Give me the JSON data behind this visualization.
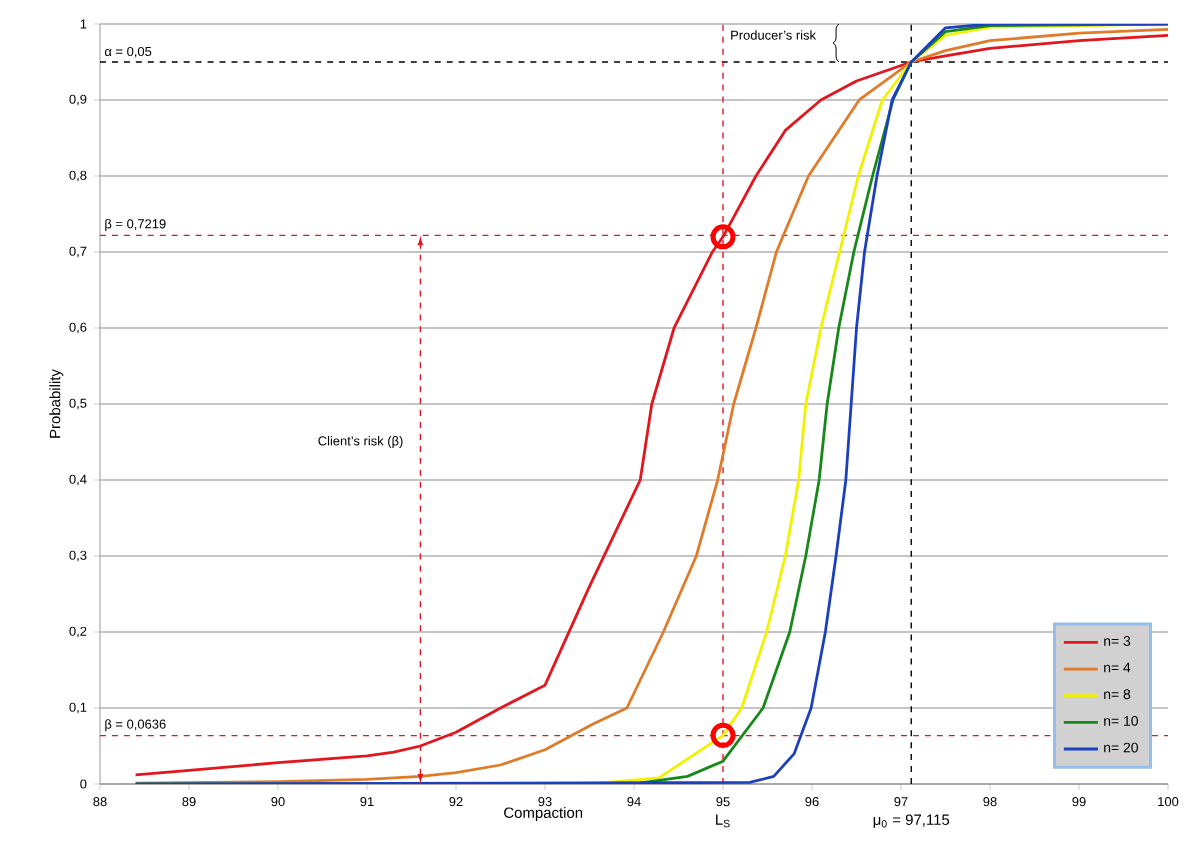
{
  "chart_data": {
    "type": "line",
    "xlabel": "Compaction",
    "ylabel": "Probability",
    "xlim": [
      88,
      100
    ],
    "xticks": [
      88,
      89,
      90,
      91,
      92,
      93,
      94,
      95,
      96,
      97,
      98,
      99,
      100
    ],
    "ylim": [
      0,
      1
    ],
    "yticks": [
      0,
      {
        "value": 0.1,
        "label": "0,1"
      },
      {
        "value": 0.2,
        "label": "0,2"
      },
      {
        "value": 0.3,
        "label": "0,3"
      },
      {
        "value": 0.4,
        "label": "0,4"
      },
      {
        "value": 0.5,
        "label": "0,5"
      },
      {
        "value": 0.6,
        "label": "0,6"
      },
      {
        "value": 0.7,
        "label": "0,7"
      },
      {
        "value": 0.8,
        "label": "0,8"
      },
      {
        "value": 0.9,
        "label": "0,9"
      },
      1
    ],
    "grid": "y",
    "legend": "bottom right",
    "marker": "none",
    "line_style": "solid",
    "series": [
      {
        "name": "n= 3",
        "color": "#e3161e",
        "x": [
          88.4,
          89,
          90,
          91,
          91.3,
          91.6,
          92,
          92.5,
          93,
          93.5,
          94.07,
          94.2,
          94.45,
          94.88,
          95,
          95.37,
          95.7,
          96.1,
          96.5,
          97.115,
          97.5,
          98,
          99,
          100
        ],
        "values": [
          0.012,
          0.018,
          0.028,
          0.037,
          0.042,
          0.05,
          0.068,
          0.1,
          0.13,
          0.26,
          0.4,
          0.5,
          0.6,
          0.7,
          0.72,
          0.8,
          0.86,
          0.9,
          0.925,
          0.95,
          0.958,
          0.968,
          0.978,
          0.985
        ]
      },
      {
        "name": "n= 4",
        "color": "#e07b2a",
        "x": [
          88.4,
          90,
          91,
          91.6,
          92,
          92.5,
          93,
          93.54,
          93.92,
          94.33,
          94.7,
          94.94,
          95.12,
          95.37,
          95.6,
          95.96,
          96.53,
          97.115,
          97.5,
          98,
          99,
          100
        ],
        "values": [
          0.001,
          0.003,
          0.006,
          0.01,
          0.015,
          0.025,
          0.045,
          0.079,
          0.1,
          0.2,
          0.3,
          0.4,
          0.5,
          0.6,
          0.7,
          0.8,
          0.9,
          0.95,
          0.965,
          0.978,
          0.988,
          0.993
        ]
      },
      {
        "name": "n= 8",
        "color": "#f2f200",
        "x": [
          88.4,
          93.5,
          94.28,
          95,
          95.21,
          95.49,
          95.7,
          95.85,
          95.93,
          96.1,
          96.31,
          96.52,
          96.79,
          97.115,
          97.5,
          98,
          100
        ],
        "values": [
          0,
          0,
          0.008,
          0.064,
          0.1,
          0.2,
          0.3,
          0.4,
          0.5,
          0.6,
          0.7,
          0.8,
          0.9,
          0.95,
          0.985,
          0.996,
          1
        ]
      },
      {
        "name": "n= 10",
        "color": "#17891b",
        "x": [
          88.4,
          94,
          94.6,
          95,
          95.45,
          95.75,
          95.93,
          96.08,
          96.17,
          96.3,
          96.47,
          96.68,
          96.91,
          97.115,
          97.5,
          98,
          100
        ],
        "values": [
          0,
          0,
          0.01,
          0.03,
          0.1,
          0.2,
          0.3,
          0.4,
          0.5,
          0.6,
          0.7,
          0.8,
          0.9,
          0.95,
          0.99,
          0.998,
          1
        ]
      },
      {
        "name": "n= 20",
        "color": "#1c3fc0",
        "x": [
          88.4,
          95.3,
          95.57,
          95.8,
          95.99,
          96.15,
          96.27,
          96.38,
          96.44,
          96.5,
          96.59,
          96.73,
          96.9,
          97.115,
          97.5,
          98,
          100
        ],
        "values": [
          0,
          0.002,
          0.01,
          0.04,
          0.1,
          0.2,
          0.3,
          0.4,
          0.5,
          0.6,
          0.7,
          0.8,
          0.9,
          0.95,
          0.995,
          1,
          1
        ]
      },
      {
        "type": "scatter",
        "marker": "circle",
        "color": "#ff0000",
        "x": [
          95,
          95
        ],
        "values": [
          0.72,
          0.064
        ]
      }
    ],
    "ref_lines": [
      {
        "axis": "y",
        "value": 0.95,
        "color": "#000000",
        "line_style": "dashed"
      },
      {
        "axis": "x",
        "value": 97.115,
        "label": "μ$_{0}$ = 97,115",
        "color": "#000000",
        "line_style": "dashed"
      },
      {
        "axis": "y",
        "value": 0.7219,
        "label": "β = 0,7219",
        "color": "#e3161e",
        "line_style": "dashed"
      },
      {
        "axis": "y",
        "value": 0.0636,
        "label": "β = 0,0636",
        "color": "#e3161e",
        "line_style": "dashed"
      },
      {
        "axis": "x",
        "value": 95,
        "label": "L$_{S}$",
        "color": "#e3161e",
        "line_style": "dashed"
      }
    ],
    "annotations": [
      "α = 0,05",
      "Producer’s risk",
      "Client’s risk (β)"
    ]
  }
}
